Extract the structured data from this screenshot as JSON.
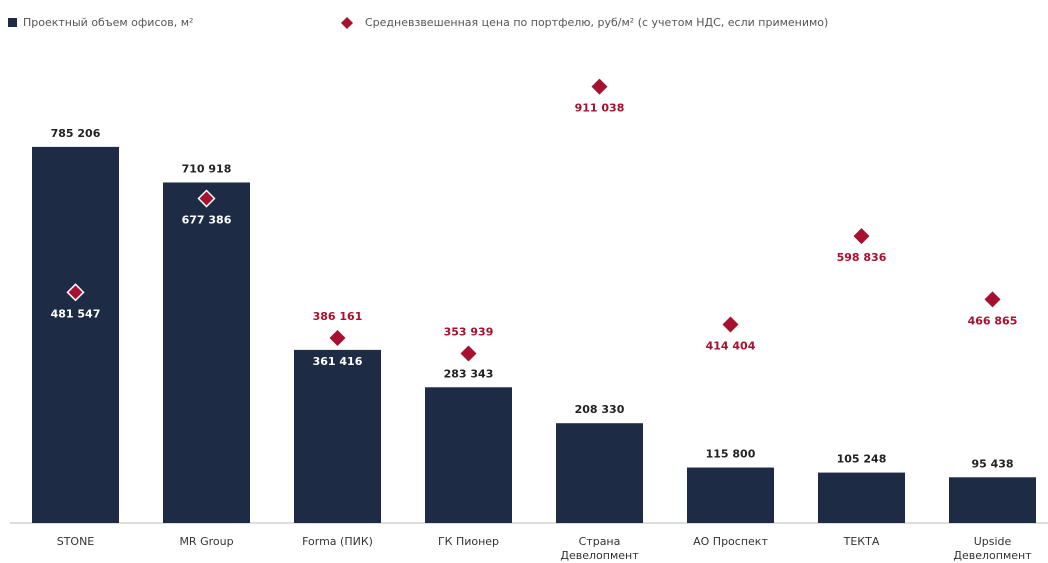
{
  "chart_data": {
    "type": "bar",
    "categories": [
      "STONE",
      "MR Group",
      "Forma (ПИК)",
      "ГК Пионер",
      "Страна Девелопмент",
      "АО Проспект",
      "ТЕКТА",
      "Upside Девелопмент"
    ],
    "series": [
      {
        "name": "Проектный объем офисов, м²",
        "color": "#1d2b45",
        "type": "bar",
        "values": [
          785206,
          710918,
          361416,
          283343,
          208330,
          115800,
          105248,
          95438
        ],
        "value_labels": [
          "785 206",
          "710 918",
          "361 416",
          "283 343",
          "208 330",
          "115 800",
          "105 248",
          "95 438"
        ]
      },
      {
        "name": "Средневзвешенная цена по портфелю, руб/м² (с учетом НДС, если применимо)",
        "color": "#a8102f",
        "type": "scatter",
        "axis": "y2",
        "values": [
          481547,
          677386,
          386161,
          353939,
          911038,
          414404,
          598836,
          466865
        ],
        "value_labels": [
          "481 547",
          "677 386",
          "386 161",
          "353 939",
          "911 038",
          "414 404",
          "598 836",
          "466 865"
        ]
      }
    ],
    "ylim": [
      0,
      1000000
    ],
    "y2lim": [
      0,
      1000000
    ],
    "legend": "top-left",
    "grid": false
  }
}
